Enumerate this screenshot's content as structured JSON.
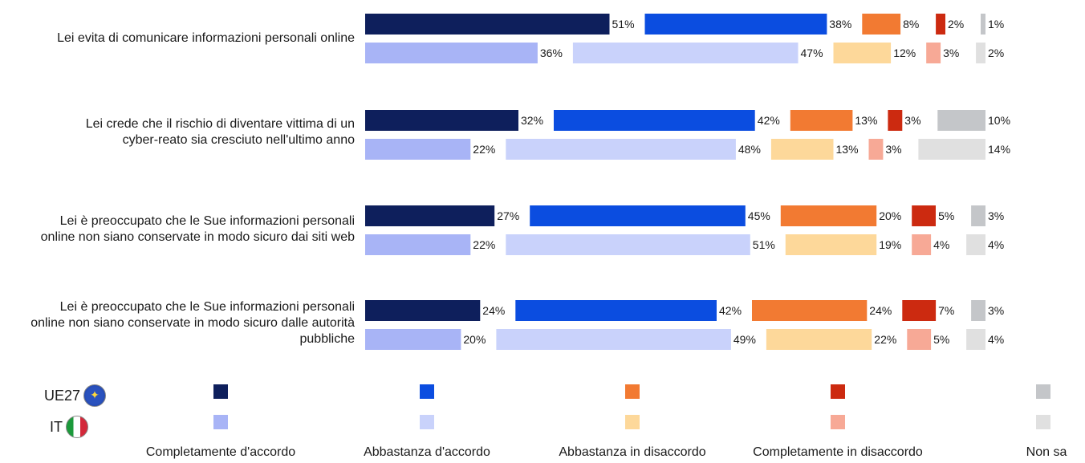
{
  "chart_data": {
    "type": "bar",
    "orientation": "horizontal-stacked",
    "categories": [
      "Lei evita di comunicare informazioni personali online",
      "Lei crede che il rischio di diventare vittima di un cyber-reato sia cresciuto nell'ultimo anno",
      "Lei è preoccupato che le Sue informazioni personali online non siano conservate in modo sicuro dai siti web",
      "Lei è preoccupato che le Sue informazioni personali online non siano conservate in modo sicuro dalle autorità pubbliche"
    ],
    "category_lines": [
      [
        "Lei evita di comunicare informazioni personali online"
      ],
      [
        "Lei crede che il rischio di diventare vittima di un",
        "cyber-reato sia cresciuto nell'ultimo anno"
      ],
      [
        "Lei è preoccupato che le Sue informazioni personali",
        "online non siano conservate in modo sicuro dai siti web"
      ],
      [
        "Lei è preoccupato che le Sue informazioni personali",
        "online non siano conservate in modo sicuro dalle autorità",
        "pubbliche"
      ]
    ],
    "answers": [
      "Completamente d'accordo",
      "Abbastanza d'accordo",
      "Abbastanza in disaccordo",
      "Completamente in disaccordo",
      "Non sa"
    ],
    "groups": [
      {
        "name": "UE27",
        "colors": [
          "#0e1f5c",
          "#0b4de0",
          "#f27a32",
          "#cc2a10",
          "#c4c6c9"
        ],
        "values": [
          [
            51,
            38,
            8,
            2,
            1
          ],
          [
            32,
            42,
            13,
            3,
            10
          ],
          [
            27,
            45,
            20,
            5,
            3
          ],
          [
            24,
            42,
            24,
            7,
            3
          ]
        ]
      },
      {
        "name": "IT",
        "colors": [
          "#a8b4f6",
          "#c9d2fb",
          "#fdd89a",
          "#f7a996",
          "#e0e0e0"
        ],
        "values": [
          [
            36,
            47,
            12,
            3,
            2
          ],
          [
            22,
            48,
            13,
            3,
            14
          ],
          [
            22,
            51,
            19,
            4,
            4
          ],
          [
            20,
            49,
            22,
            5,
            4
          ]
        ]
      }
    ],
    "value_suffix": "%",
    "legend_placement": "bottom"
  }
}
